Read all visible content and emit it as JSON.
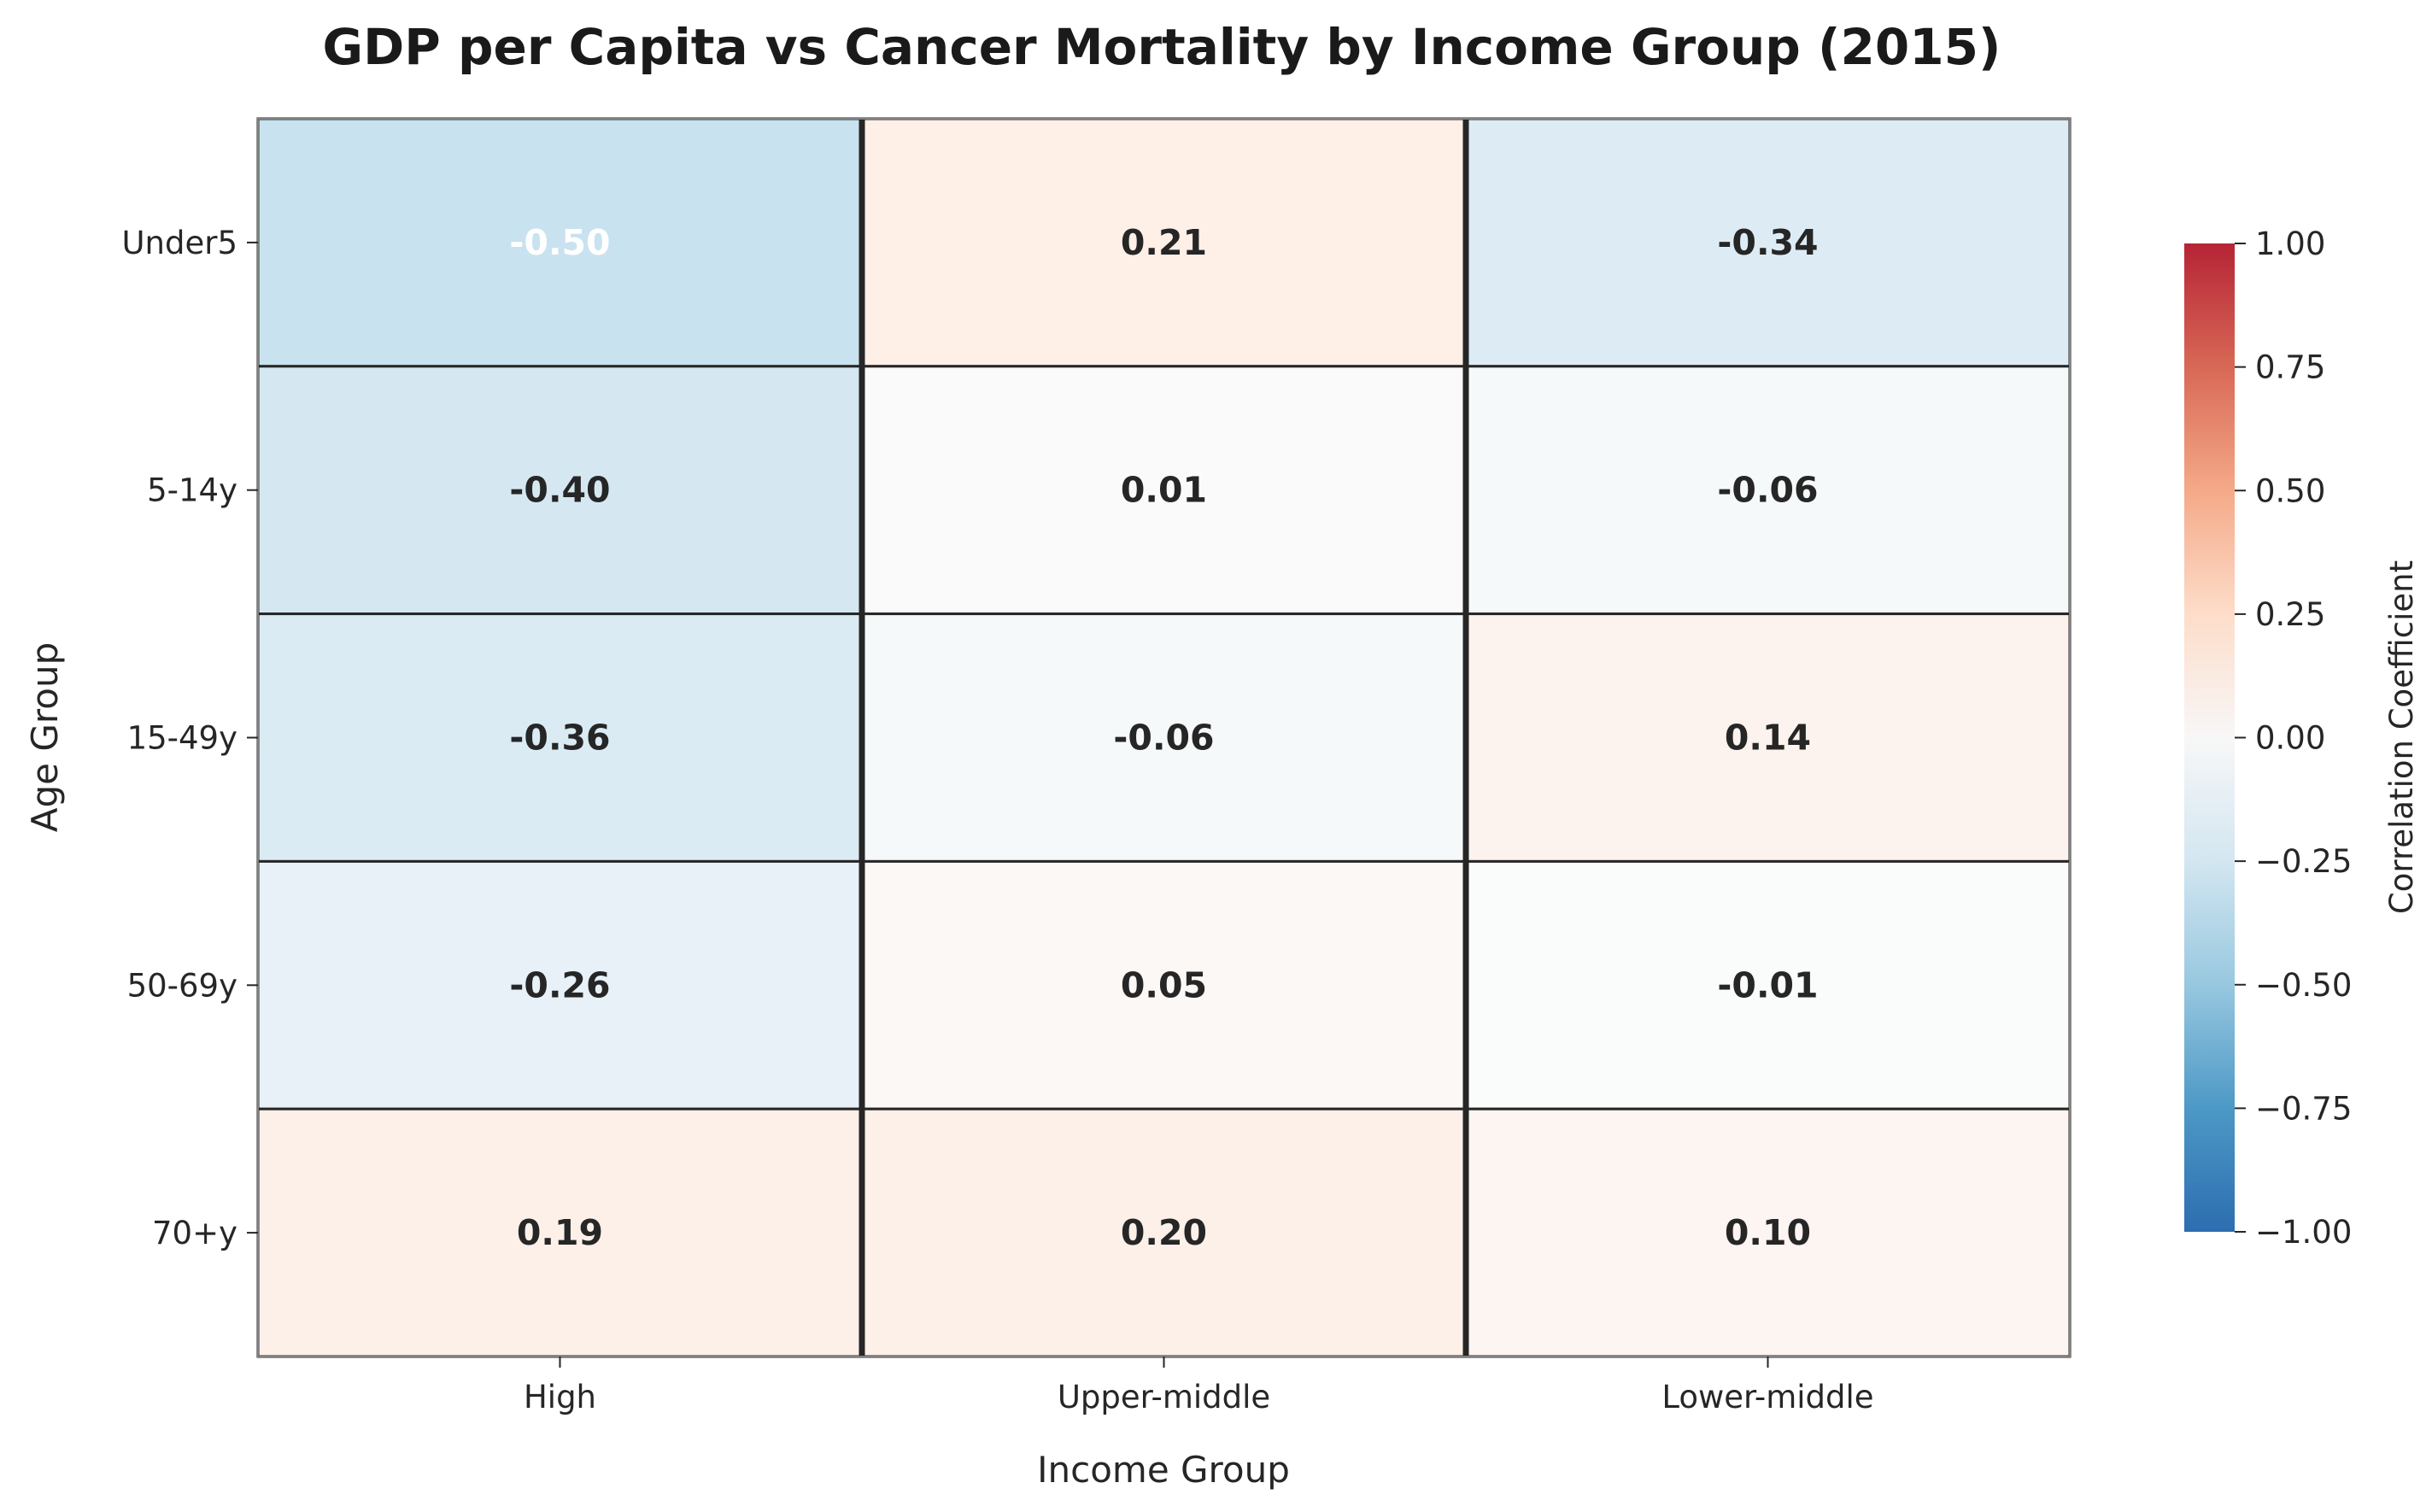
{
  "chart_data": {
    "type": "heatmap",
    "title": "GDP per Capita vs Cancer Mortality by Income Group (2015)",
    "xlabel": "Income Group",
    "ylabel": "Age Group",
    "columns": [
      "High",
      "Upper-middle",
      "Lower-middle"
    ],
    "rows": [
      "Under5",
      "5-14y",
      "15-49y",
      "50-69y",
      "70+y"
    ],
    "values": [
      [
        -0.5,
        0.21,
        -0.34
      ],
      [
        -0.4,
        0.01,
        -0.06
      ],
      [
        -0.36,
        -0.06,
        0.14
      ],
      [
        -0.26,
        0.05,
        -0.01
      ],
      [
        0.19,
        0.2,
        0.1
      ]
    ],
    "value_labels": [
      [
        "-0.50",
        "0.21",
        "-0.34"
      ],
      [
        "-0.40",
        "0.01",
        "-0.06"
      ],
      [
        "-0.36",
        "-0.06",
        "0.14"
      ],
      [
        "-0.26",
        "0.05",
        "-0.01"
      ],
      [
        "0.19",
        "0.20",
        "0.10"
      ]
    ],
    "colorbar": {
      "label": "Correlation Coefficient",
      "range": [
        -1.0,
        1.0
      ],
      "ticks": [
        1.0,
        0.75,
        0.5,
        0.25,
        0.0,
        -0.25,
        -0.5,
        -0.75,
        -1.0
      ],
      "tick_labels": [
        "1.00",
        "0.75",
        "0.50",
        "0.25",
        "0.00",
        "−0.25",
        "−0.50",
        "−0.75",
        "−1.00"
      ],
      "colormap": "RdBu_r",
      "cell_alpha": 0.5
    },
    "colors": {
      "cell_border": "#262626",
      "column_divider": "#262626",
      "text_dark": "#262626",
      "text_light": "#ffffff"
    }
  }
}
